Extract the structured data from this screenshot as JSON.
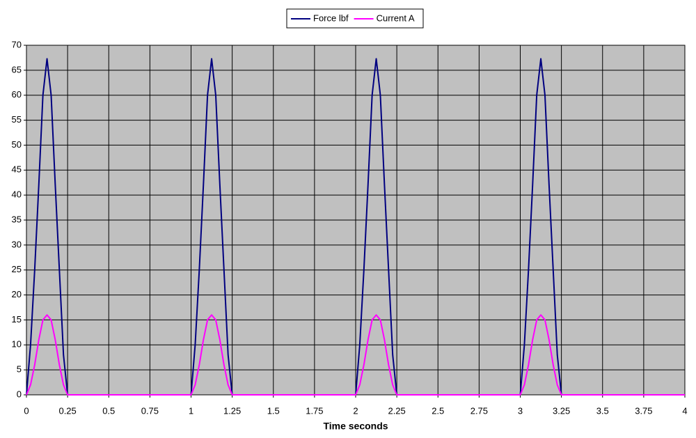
{
  "chart_data": {
    "type": "line",
    "x_label": "Time seconds",
    "x": [
      0,
      0.025,
      0.05,
      0.075,
      0.1,
      0.125,
      0.15,
      0.175,
      0.2,
      0.225,
      0.25,
      0.5,
      0.75,
      1,
      1.025,
      1.05,
      1.075,
      1.1,
      1.125,
      1.15,
      1.175,
      1.2,
      1.225,
      1.25,
      1.5,
      1.75,
      2,
      2.025,
      2.05,
      2.075,
      2.1,
      2.125,
      2.15,
      2.175,
      2.2,
      2.225,
      2.25,
      2.5,
      2.75,
      3,
      3.025,
      3.05,
      3.075,
      3.1,
      3.125,
      3.15,
      3.175,
      3.2,
      3.225,
      3.25,
      3.5,
      3.75,
      4
    ],
    "series": [
      {
        "name": "Force lbf",
        "color": "#000080",
        "values": [
          0,
          10,
          25,
          42,
          60,
          67.3,
          60,
          42,
          25,
          8,
          0,
          0,
          0,
          0,
          10,
          25,
          42,
          60,
          67.3,
          60,
          42,
          25,
          8,
          0,
          0,
          0,
          0,
          10,
          25,
          42,
          60,
          67.3,
          60,
          42,
          25,
          8,
          0,
          0,
          0,
          0,
          10,
          25,
          42,
          60,
          67.3,
          60,
          42,
          25,
          8,
          0,
          0,
          0,
          0
        ]
      },
      {
        "name": "Current A",
        "color": "#ff00ff",
        "values": [
          0,
          2,
          6,
          11,
          15,
          16,
          15,
          11,
          6,
          2,
          0,
          0,
          0,
          0,
          2,
          6,
          11,
          15,
          16,
          15,
          11,
          6,
          2,
          0,
          0,
          0,
          0,
          2,
          6,
          11,
          15,
          16,
          15,
          11,
          6,
          2,
          0,
          0,
          0,
          0,
          2,
          6,
          11,
          15,
          16,
          15,
          11,
          6,
          2,
          0,
          0,
          0,
          0
        ]
      }
    ],
    "xlim": [
      0,
      4
    ],
    "xticks": [
      0,
      0.25,
      0.5,
      0.75,
      1,
      1.25,
      1.5,
      1.75,
      2,
      2.25,
      2.5,
      2.75,
      3,
      3.25,
      3.5,
      3.75,
      4
    ],
    "ylim": [
      0,
      70
    ],
    "yticks": [
      0,
      5,
      10,
      15,
      20,
      25,
      30,
      35,
      40,
      45,
      50,
      55,
      60,
      65,
      70
    ],
    "grid": true,
    "plot_background": "#c0c0c0",
    "legend": "top"
  }
}
